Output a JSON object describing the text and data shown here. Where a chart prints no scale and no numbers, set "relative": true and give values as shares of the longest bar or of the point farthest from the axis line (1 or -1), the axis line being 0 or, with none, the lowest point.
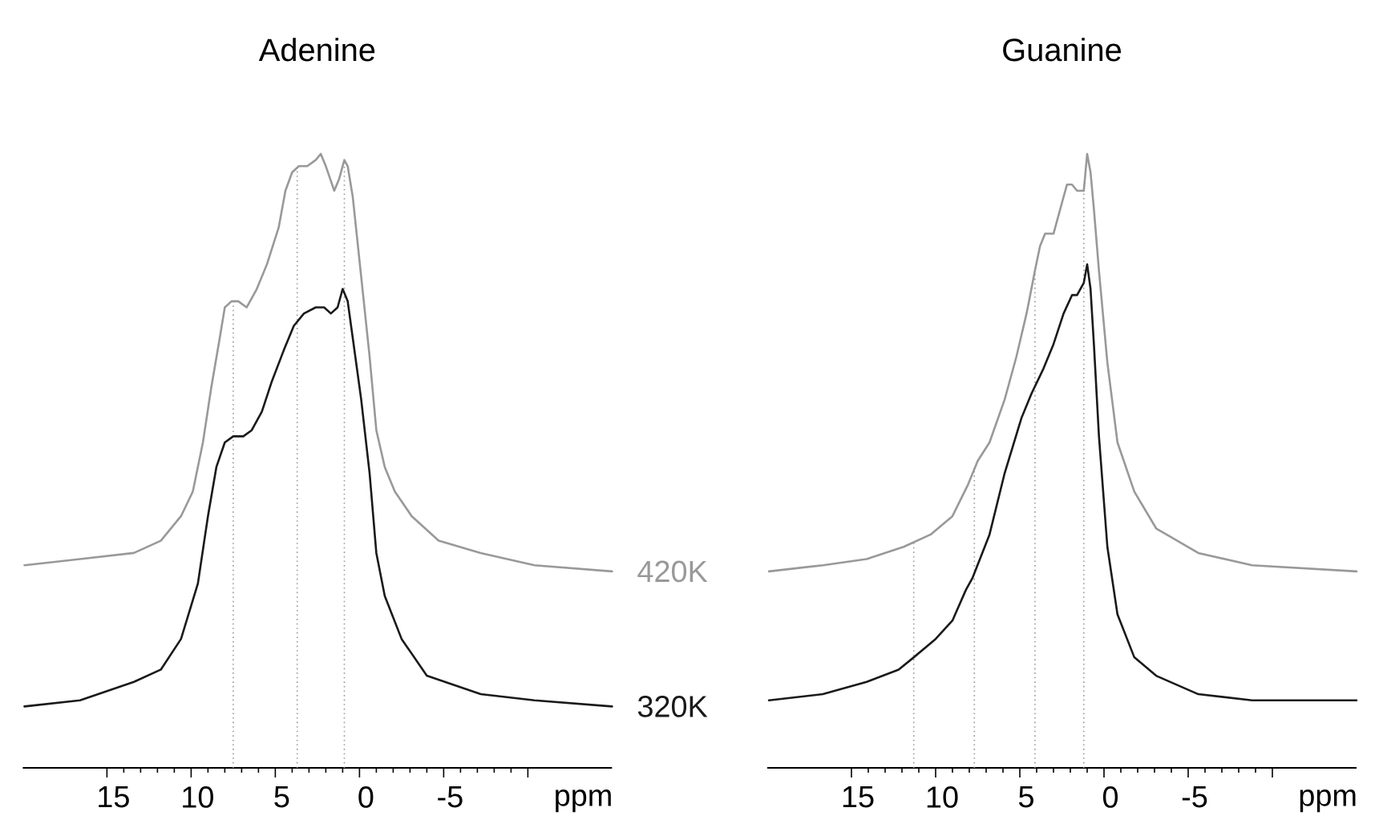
{
  "chart_data": [
    {
      "type": "line",
      "title": "Adenine",
      "xlabel": "ppm",
      "relative": true,
      "xlim": [
        20,
        -15
      ],
      "xticks": [
        15,
        10,
        5,
        0,
        -5,
        {
          "value": -10,
          "label": null
        }
      ],
      "line_style": "solid",
      "marker": "none",
      "series": [
        {
          "name": "420K",
          "color": "#999999",
          "x": [
            19.9,
            16.6,
            13.4,
            11.8,
            10.6,
            9.9,
            9.3,
            8.8,
            8.3,
            8.0,
            7.6,
            7.2,
            6.7,
            6.1,
            5.5,
            4.8,
            4.4,
            4.0,
            3.6,
            3.1,
            2.6,
            2.3,
            2.0,
            1.5,
            1.2,
            0.9,
            0.7,
            0.4,
            -0.1,
            -0.6,
            -1.0,
            -1.5,
            -2.1,
            -3.1,
            -4.7,
            -7.2,
            -10.4,
            -15.0
          ],
          "values": [
            0.33,
            0.34,
            0.35,
            0.37,
            0.41,
            0.45,
            0.53,
            0.62,
            0.7,
            0.75,
            0.76,
            0.76,
            0.75,
            0.78,
            0.82,
            0.88,
            0.94,
            0.97,
            0.98,
            0.98,
            0.99,
            1.0,
            0.98,
            0.94,
            0.96,
            0.99,
            0.98,
            0.93,
            0.8,
            0.67,
            0.55,
            0.49,
            0.45,
            0.41,
            0.37,
            0.35,
            0.33,
            0.32
          ]
        },
        {
          "name": "320K",
          "color": "#1a1a1a",
          "x": [
            19.9,
            16.6,
            13.4,
            11.8,
            10.6,
            9.6,
            9.0,
            8.5,
            8.0,
            7.5,
            6.9,
            6.4,
            5.8,
            5.2,
            4.5,
            3.9,
            3.3,
            2.6,
            2.1,
            1.7,
            1.3,
            1.0,
            0.7,
            0.4,
            -0.1,
            -0.6,
            -1.0,
            -1.5,
            -2.5,
            -4.0,
            -7.2,
            -10.4,
            -15.0
          ],
          "values": [
            0.1,
            0.11,
            0.14,
            0.16,
            0.21,
            0.3,
            0.41,
            0.49,
            0.53,
            0.54,
            0.54,
            0.55,
            0.58,
            0.63,
            0.68,
            0.72,
            0.74,
            0.75,
            0.75,
            0.74,
            0.75,
            0.78,
            0.76,
            0.7,
            0.6,
            0.48,
            0.35,
            0.28,
            0.21,
            0.15,
            0.12,
            0.11,
            0.1
          ]
        }
      ],
      "ref_lines": [
        {
          "axis": "x",
          "value": 7.5,
          "color": "#999999",
          "line_style": "dotted"
        },
        {
          "axis": "x",
          "value": 3.7,
          "color": "#999999",
          "line_style": "dotted"
        },
        {
          "axis": "x",
          "value": 0.9,
          "color": "#999999",
          "line_style": "dotted"
        }
      ]
    },
    {
      "type": "line",
      "title": "Guanine",
      "xlabel": "ppm",
      "relative": true,
      "xlim": [
        20,
        -15
      ],
      "xticks": [
        15,
        10,
        5,
        0,
        -5,
        {
          "value": -10,
          "label": null
        }
      ],
      "line_style": "solid",
      "marker": "none",
      "series": [
        {
          "color": "#999999",
          "x": [
            19.9,
            16.7,
            14.1,
            11.9,
            10.3,
            9.0,
            8.1,
            7.5,
            6.8,
            5.9,
            5.2,
            4.6,
            4.1,
            3.8,
            3.5,
            3.0,
            2.5,
            2.2,
            1.9,
            1.6,
            1.2,
            1.0,
            0.8,
            0.6,
            0.3,
            -0.2,
            -0.8,
            -1.8,
            -3.1,
            -5.6,
            -8.8,
            -15.0
          ],
          "values": [
            0.32,
            0.33,
            0.34,
            0.36,
            0.38,
            0.41,
            0.46,
            0.5,
            0.53,
            0.6,
            0.67,
            0.74,
            0.81,
            0.85,
            0.87,
            0.87,
            0.92,
            0.95,
            0.95,
            0.94,
            0.94,
            1.0,
            0.97,
            0.91,
            0.81,
            0.66,
            0.53,
            0.45,
            0.39,
            0.35,
            0.33,
            0.32
          ]
        },
        {
          "color": "#1a1a1a",
          "x": [
            19.9,
            16.7,
            14.1,
            12.2,
            11.3,
            10.0,
            9.0,
            8.2,
            7.8,
            6.8,
            5.9,
            4.9,
            4.3,
            3.6,
            3.0,
            2.4,
            1.9,
            1.6,
            1.2,
            1.0,
            0.8,
            0.6,
            0.3,
            -0.2,
            -0.8,
            -1.8,
            -3.1,
            -5.6,
            -8.8,
            -15.0
          ],
          "values": [
            0.11,
            0.12,
            0.14,
            0.16,
            0.18,
            0.21,
            0.24,
            0.29,
            0.31,
            0.38,
            0.48,
            0.57,
            0.61,
            0.65,
            0.69,
            0.74,
            0.77,
            0.77,
            0.79,
            0.82,
            0.78,
            0.69,
            0.54,
            0.36,
            0.25,
            0.18,
            0.15,
            0.12,
            0.11,
            0.11
          ]
        }
      ],
      "ref_lines": [
        {
          "axis": "x",
          "value": 11.3,
          "color": "#999999",
          "line_style": "dotted"
        },
        {
          "axis": "x",
          "value": 7.7,
          "color": "#999999",
          "line_style": "dotted"
        },
        {
          "axis": "x",
          "value": 4.1,
          "color": "#999999",
          "line_style": "dotted"
        },
        {
          "axis": "x",
          "value": 1.2,
          "color": "#999999",
          "line_style": "dotted"
        }
      ]
    }
  ]
}
